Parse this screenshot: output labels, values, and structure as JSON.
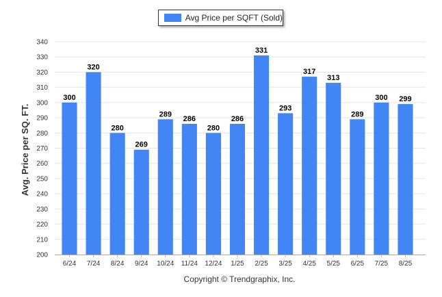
{
  "legend": {
    "label": "Avg Price per SQFT (Sold)"
  },
  "footer": "Copyright © Trendgraphix, Inc.",
  "colors": {
    "bar": "#4285f4",
    "grid": "#e4e4e4",
    "axis": "#b0b0b0"
  },
  "chart_data": {
    "type": "bar",
    "categories": [
      "6/24",
      "7/24",
      "8/24",
      "9/24",
      "10/24",
      "11/24",
      "12/24",
      "1/25",
      "2/25",
      "3/25",
      "4/25",
      "5/25",
      "6/25",
      "7/25",
      "8/25"
    ],
    "series": [
      {
        "name": "Avg Price per SQFT (Sold)",
        "values": [
          300,
          320,
          280,
          269,
          289,
          286,
          280,
          286,
          331,
          293,
          317,
          313,
          289,
          300,
          299
        ]
      }
    ],
    "title": "",
    "xlabel": "",
    "ylabel": "Avg. Price per SQ. FT.",
    "ylim": [
      200,
      340
    ],
    "yticks": [
      200,
      210,
      220,
      230,
      240,
      250,
      260,
      270,
      280,
      290,
      300,
      310,
      320,
      330,
      340
    ],
    "grid": true,
    "legend_position": "top-center",
    "data_labels": true
  }
}
